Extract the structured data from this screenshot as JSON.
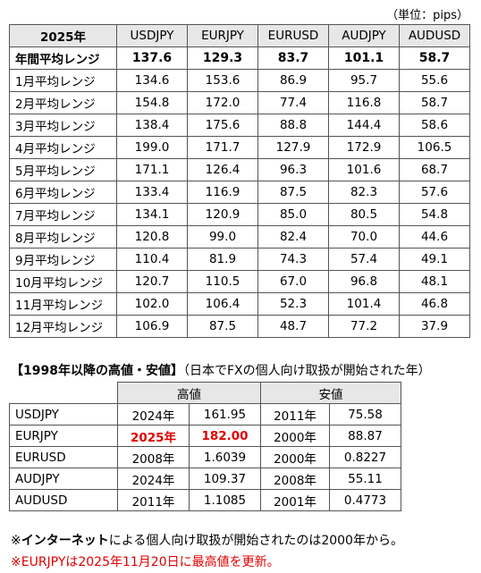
{
  "unit_label": "（単位：pips）",
  "range_table": {
    "corner": "2025年",
    "pairs": [
      "USDJPY",
      "EURJPY",
      "EURUSD",
      "AUDJPY",
      "AUDUSD"
    ],
    "annual": {
      "label": "年間平均レンジ",
      "values": [
        "137.6",
        "129.3",
        "83.7",
        "101.1",
        "58.7"
      ]
    },
    "months": [
      {
        "label": "1月平均レンジ",
        "values": [
          "134.6",
          "153.6",
          "86.9",
          "95.7",
          "55.6"
        ]
      },
      {
        "label": "2月平均レンジ",
        "values": [
          "154.8",
          "172.0",
          "77.4",
          "116.8",
          "58.7"
        ]
      },
      {
        "label": "3月平均レンジ",
        "values": [
          "138.4",
          "175.6",
          "88.8",
          "144.4",
          "58.6"
        ]
      },
      {
        "label": "4月平均レンジ",
        "values": [
          "199.0",
          "171.7",
          "127.9",
          "172.9",
          "106.5"
        ]
      },
      {
        "label": "5月平均レンジ",
        "values": [
          "171.1",
          "126.4",
          "96.3",
          "101.6",
          "68.7"
        ]
      },
      {
        "label": "6月平均レンジ",
        "values": [
          "133.4",
          "116.9",
          "87.5",
          "82.3",
          "57.6"
        ]
      },
      {
        "label": "7月平均レンジ",
        "values": [
          "134.1",
          "120.9",
          "85.0",
          "80.5",
          "54.8"
        ]
      },
      {
        "label": "8月平均レンジ",
        "values": [
          "120.8",
          "99.0",
          "82.4",
          "70.0",
          "44.6"
        ]
      },
      {
        "label": "9月平均レンジ",
        "values": [
          "110.4",
          "81.9",
          "74.3",
          "57.4",
          "49.1"
        ]
      },
      {
        "label": "10月平均レンジ",
        "values": [
          "120.7",
          "110.5",
          "67.0",
          "96.8",
          "48.1"
        ]
      },
      {
        "label": "11月平均レンジ",
        "values": [
          "102.0",
          "106.4",
          "52.3",
          "101.4",
          "46.8"
        ]
      },
      {
        "label": "12月平均レンジ",
        "values": [
          "106.9",
          "87.5",
          "48.7",
          "77.2",
          "37.9"
        ]
      }
    ]
  },
  "high_low": {
    "title_bold": "【1998年以降の高値・安値】",
    "title_note": "（日本でFXの個人向け取扱が開始された年）",
    "high_header": "高値",
    "low_header": "安値",
    "rows": [
      {
        "pair": "USDJPY",
        "high_year": "2024年",
        "high": "161.95",
        "low_year": "2011年",
        "low": "75.58",
        "highlight": false
      },
      {
        "pair": "EURJPY",
        "high_year": "2025年",
        "high": "182.00",
        "low_year": "2000年",
        "low": "88.87",
        "highlight": true
      },
      {
        "pair": "EURUSD",
        "high_year": "2008年",
        "high": "1.6039",
        "low_year": "2000年",
        "low": "0.8227",
        "highlight": false
      },
      {
        "pair": "AUDJPY",
        "high_year": "2024年",
        "high": "109.37",
        "low_year": "2008年",
        "low": "55.11",
        "highlight": false
      },
      {
        "pair": "AUDUSD",
        "high_year": "2011年",
        "high": "1.1085",
        "low_year": "2001年",
        "low": "0.4773",
        "highlight": false
      }
    ]
  },
  "notes": {
    "note1_prefix": "※",
    "note1_bold": "インターネット",
    "note1_rest": "による個人向け取扱が開始されたのは2000年から。",
    "note2": "※EURJPYは2025年11月20日に最高値を更新。"
  },
  "colors": {
    "header_bg": "#e7e7e7",
    "highlight_red": "#e00000"
  }
}
